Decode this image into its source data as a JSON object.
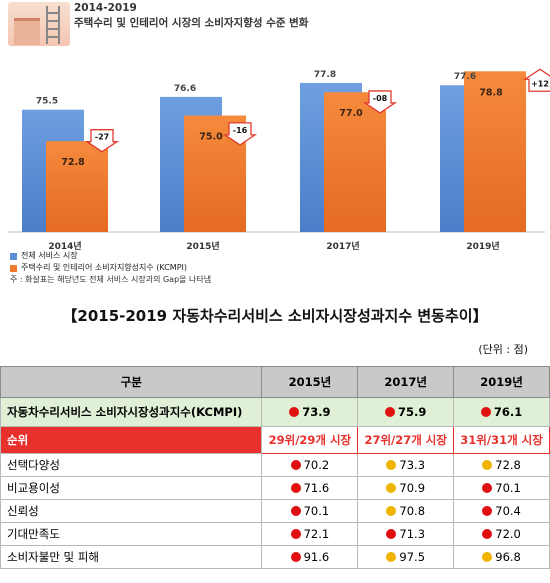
{
  "chart_data": {
    "type": "bar",
    "period": "2014-2019",
    "title": "주택수리 및 인테리어 시장의 소비자지향성 수준 변화",
    "categories": [
      "2014년",
      "2015년",
      "2017년",
      "2019년"
    ],
    "ylim": [
      65,
      82
    ],
    "grid": false,
    "legend_placement": "bottom-left",
    "series": [
      {
        "name": "전체 서비스 시장",
        "values": [
          75.5,
          76.6,
          77.8,
          77.6
        ],
        "color": "#5b8fd6"
      },
      {
        "name": "주택수리 및 인테리어 소비자지향성지수 (KCMPI)",
        "values": [
          72.8,
          75.0,
          77.0,
          78.8
        ],
        "color": "#ee7a30"
      }
    ],
    "gaps": [
      "-2.7",
      "-1.6",
      "-0.8",
      "+1.2"
    ],
    "gap_labels": [
      "-27",
      "-16",
      "-08",
      "+12"
    ],
    "note": "주 : 화살표는 해당년도 전체 서비스 시장과의 Gap을 나타냄"
  },
  "table": {
    "title": "【2015-2019 자동차수리서비스 소비자시장성과지수 변동추이】",
    "unit": "(단위 :  점)",
    "headers": [
      "구분",
      "2015년",
      "2017년",
      "2019년"
    ],
    "kcmpi": {
      "label": "자동차수리서비스 소비자시장성과지수(KCMPI)",
      "values": [
        "73.9",
        "75.9",
        "76.1"
      ],
      "colors": [
        "red",
        "red",
        "red"
      ]
    },
    "rank": {
      "label": "순위",
      "values": [
        "29위/29개 시장",
        "27위/27개 시장",
        "31위/31개 시장"
      ]
    },
    "rows": [
      {
        "label": "선택다양성",
        "values": [
          "70.2",
          "73.3",
          "72.8"
        ],
        "colors": [
          "red",
          "yellow",
          "yellow"
        ]
      },
      {
        "label": "비교용이성",
        "values": [
          "71.6",
          "70.9",
          "70.1"
        ],
        "colors": [
          "red",
          "yellow",
          "red"
        ]
      },
      {
        "label": "신뢰성",
        "values": [
          "70.1",
          "70.8",
          "70.4"
        ],
        "colors": [
          "red",
          "yellow",
          "red"
        ]
      },
      {
        "label": "기대만족도",
        "values": [
          "72.1",
          "71.3",
          "72.0"
        ],
        "colors": [
          "red",
          "red",
          "red"
        ]
      },
      {
        "label": "소비자불만 및 피해",
        "values": [
          "91.6",
          "97.5",
          "96.8"
        ],
        "colors": [
          "red",
          "yellow",
          "yellow"
        ]
      }
    ]
  }
}
